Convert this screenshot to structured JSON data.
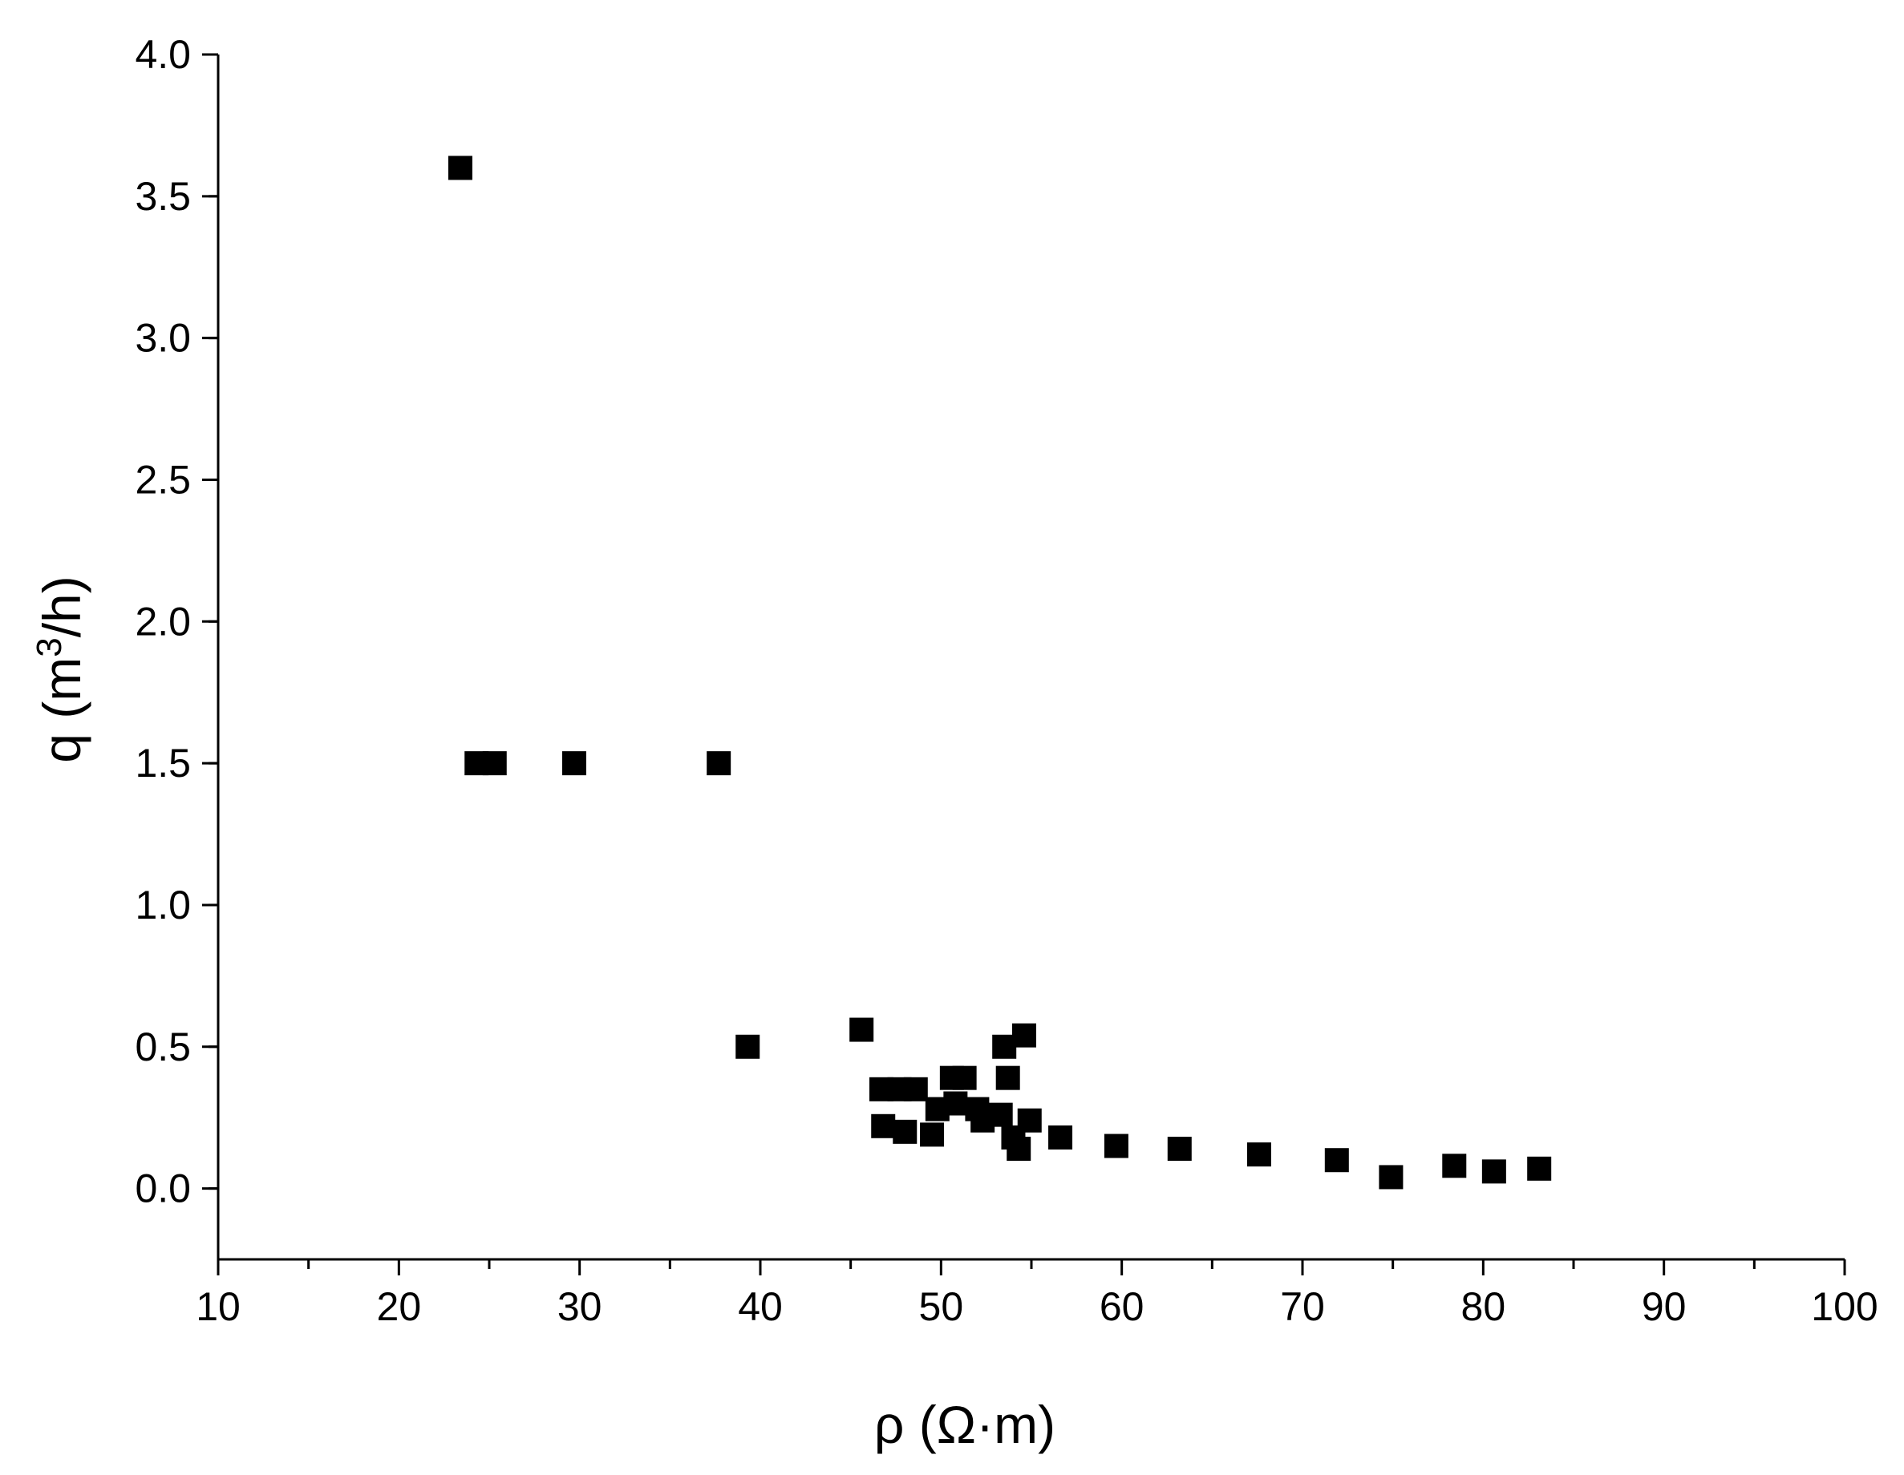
{
  "chart_data": {
    "type": "scatter",
    "xlabel": "ρ (Ω·m)",
    "ylabel": {
      "prefix": "q (m",
      "superscript": "3",
      "suffix": "/h)"
    },
    "xlim": [
      10,
      100
    ],
    "ylim": [
      -0.25,
      4.0
    ],
    "x_ticks": [
      "10",
      "20",
      "30",
      "40",
      "50",
      "60",
      "70",
      "80",
      "90",
      "100"
    ],
    "y_ticks": [
      "0.0",
      "0.5",
      "1.0",
      "1.5",
      "2.0",
      "2.5",
      "3.0",
      "3.5",
      "4.0"
    ],
    "grid": false,
    "marker": "square",
    "marker_color": "#000000",
    "series": [
      {
        "points": [
          {
            "x": 23.4,
            "y": 3.6
          },
          {
            "x": 24.3,
            "y": 1.5
          },
          {
            "x": 25.3,
            "y": 1.5
          },
          {
            "x": 29.7,
            "y": 1.5
          },
          {
            "x": 37.7,
            "y": 1.5
          },
          {
            "x": 39.3,
            "y": 0.5
          },
          {
            "x": 45.6,
            "y": 0.56
          },
          {
            "x": 46.7,
            "y": 0.35
          },
          {
            "x": 46.8,
            "y": 0.22
          },
          {
            "x": 47.7,
            "y": 0.35
          },
          {
            "x": 48.0,
            "y": 0.2
          },
          {
            "x": 48.6,
            "y": 0.35
          },
          {
            "x": 49.5,
            "y": 0.19
          },
          {
            "x": 49.8,
            "y": 0.28
          },
          {
            "x": 50.6,
            "y": 0.39
          },
          {
            "x": 50.8,
            "y": 0.3
          },
          {
            "x": 51.3,
            "y": 0.39
          },
          {
            "x": 52.0,
            "y": 0.28
          },
          {
            "x": 52.3,
            "y": 0.24
          },
          {
            "x": 53.3,
            "y": 0.26
          },
          {
            "x": 53.5,
            "y": 0.5
          },
          {
            "x": 53.7,
            "y": 0.39
          },
          {
            "x": 54.0,
            "y": 0.18
          },
          {
            "x": 54.3,
            "y": 0.14
          },
          {
            "x": 54.6,
            "y": 0.54
          },
          {
            "x": 54.9,
            "y": 0.24
          },
          {
            "x": 56.6,
            "y": 0.18
          },
          {
            "x": 59.7,
            "y": 0.15
          },
          {
            "x": 63.2,
            "y": 0.14
          },
          {
            "x": 67.6,
            "y": 0.12
          },
          {
            "x": 71.9,
            "y": 0.1
          },
          {
            "x": 74.9,
            "y": 0.04
          },
          {
            "x": 78.4,
            "y": 0.08
          },
          {
            "x": 80.6,
            "y": 0.06
          },
          {
            "x": 83.1,
            "y": 0.07
          }
        ]
      }
    ]
  }
}
